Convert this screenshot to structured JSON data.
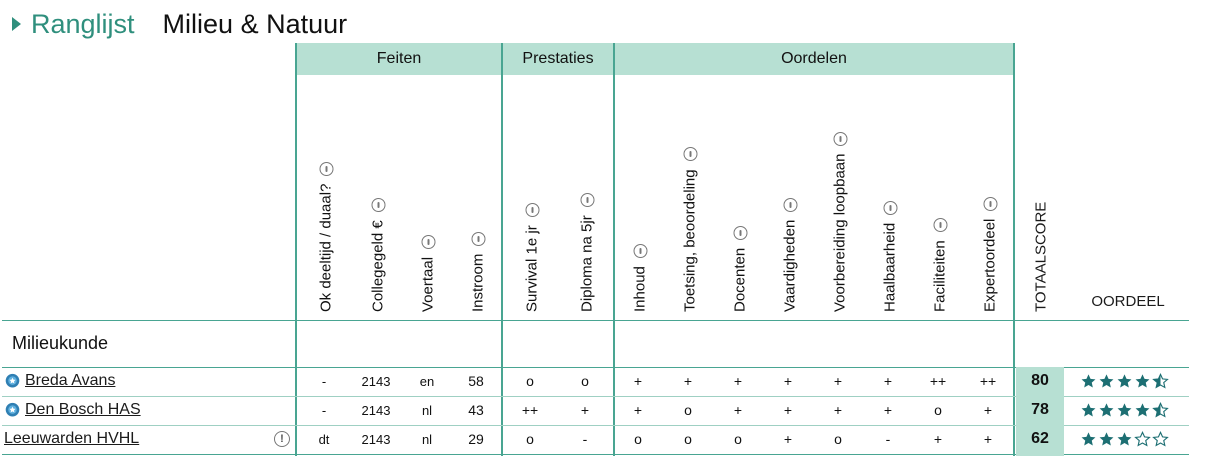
{
  "header": {
    "rank_label": "Ranglijst",
    "title": "Milieu & Natuur"
  },
  "groups": [
    {
      "label": "Feiten"
    },
    {
      "label": "Prestaties"
    },
    {
      "label": "Oordelen"
    }
  ],
  "columns": [
    "Ok deeltijd / duaal?",
    "Collegegeld €",
    "Voertaal",
    "Instroom",
    "Survival 1e jr",
    "Diploma na 5jr",
    "Inhoud",
    "Toetsing, beoordeling",
    "Docenten",
    "Vaardigheden",
    "Voorbereiding loopbaan",
    "Haalbaarheid",
    "Faciliteiten",
    "Expertoordeel"
  ],
  "total_label": "TOTAALSCORE",
  "oordeel_label": "OORDEEL",
  "section": "Milieukunde",
  "rows": [
    {
      "school": "Breda Avans",
      "badge": true,
      "warning": false,
      "values": [
        "-",
        "2143",
        "en",
        "58",
        "o",
        "o",
        "+",
        "+",
        "+",
        "+",
        "+",
        "+",
        "++",
        "++"
      ],
      "score": "80",
      "stars": 4.5
    },
    {
      "school": "Den Bosch HAS",
      "badge": true,
      "warning": false,
      "values": [
        "-",
        "2143",
        "nl",
        "43",
        "++",
        "+",
        "+",
        "o",
        "+",
        "+",
        "+",
        "+",
        "o",
        "+"
      ],
      "score": "78",
      "stars": 4.5
    },
    {
      "school": "Leeuwarden HVHL",
      "badge": false,
      "warning": true,
      "warning_symbol": "!",
      "values": [
        "dt",
        "2143",
        "nl",
        "29",
        "o",
        "-",
        "o",
        "o",
        "o",
        "+",
        "o",
        "-",
        "+",
        "+"
      ],
      "score": "62",
      "stars": 3
    }
  ],
  "colors": {
    "accent": "#2f8f7d",
    "group_bg": "#b7e0d3",
    "star": "#1d6f73"
  },
  "icons": {
    "header_caret": "caret-right-icon",
    "info": "info-icon",
    "badge": "award-badge-icon",
    "warning": "warning-icon",
    "star": "star-icon"
  }
}
